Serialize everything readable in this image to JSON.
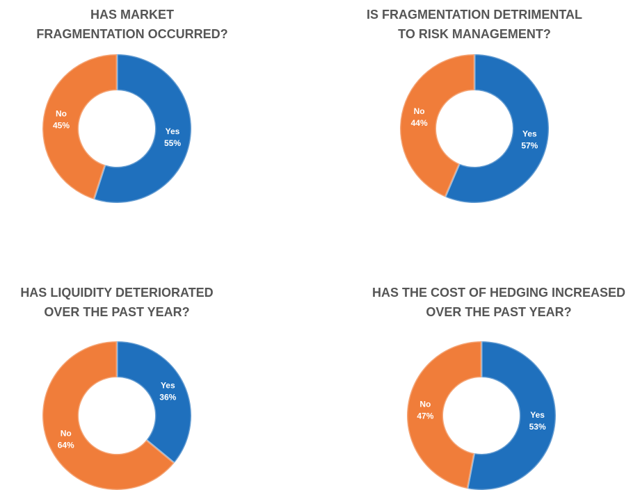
{
  "chart_data": [
    {
      "type": "pie",
      "title": [
        "HAS MARKET",
        "FRAGMENTATION OCCURRED?"
      ],
      "categories": [
        "Yes",
        "No"
      ],
      "values": [
        55,
        45
      ],
      "value_labels": [
        "55%",
        "45%"
      ],
      "colors": [
        "#1f70bd",
        "#f07d3a"
      ]
    },
    {
      "type": "pie",
      "title": [
        "IS FRAGMENTATION DETRIMENTAL",
        "TO RISK MANAGEMENT?"
      ],
      "categories": [
        "Yes",
        "No"
      ],
      "values": [
        57,
        44
      ],
      "value_labels": [
        "57%",
        "44%"
      ],
      "colors": [
        "#1f70bd",
        "#f07d3a"
      ]
    },
    {
      "type": "pie",
      "title": [
        "HAS LIQUIDITY DETERIORATED",
        "OVER THE PAST YEAR?"
      ],
      "categories": [
        "Yes",
        "No"
      ],
      "values": [
        36,
        64
      ],
      "value_labels": [
        "36%",
        "64%"
      ],
      "colors": [
        "#1f70bd",
        "#f07d3a"
      ]
    },
    {
      "type": "pie",
      "title": [
        "HAS THE COST OF HEDGING INCREASED",
        "OVER THE PAST YEAR?"
      ],
      "categories": [
        "Yes",
        "No"
      ],
      "values": [
        53,
        47
      ],
      "value_labels": [
        "53%",
        "47%"
      ],
      "colors": [
        "#1f70bd",
        "#f07d3a"
      ]
    }
  ]
}
